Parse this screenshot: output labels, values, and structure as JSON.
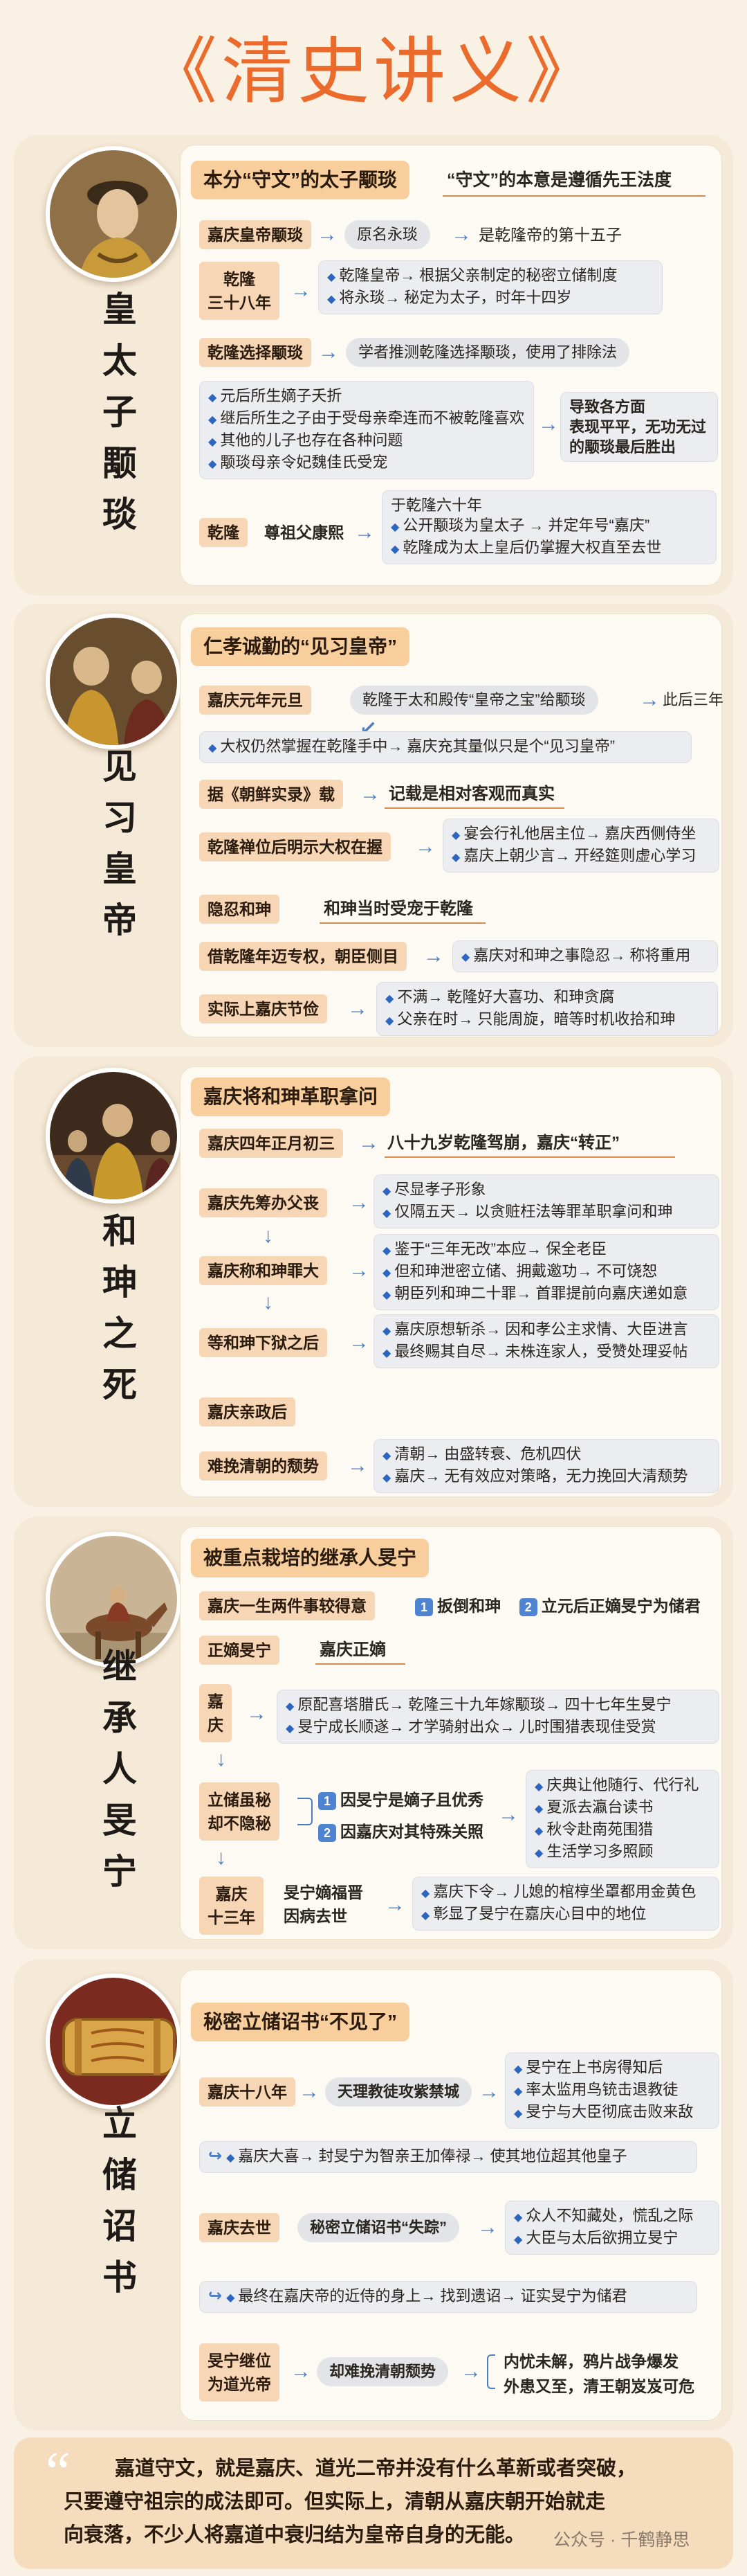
{
  "title": "《清史讲义》",
  "s1": {
    "side_title": "皇太子颙琰",
    "header": "本分“守文”的太子颙琰",
    "header_note": "“守文”的本意是遵循先王法度",
    "birth": {
      "label": "嘉庆皇帝颙琰",
      "orig": "原名永琰",
      "note": "是乾隆帝的第十五子"
    },
    "qianlong38": {
      "label_l1": "乾隆",
      "label_l2": "三十八年",
      "lines": [
        "乾隆皇帝→ 根据父亲制定的秘密立储制度",
        "将永琰→ 秘定为太子，时年十四岁"
      ]
    },
    "choose": {
      "label": "乾隆选择颙琰",
      "note": "学者推测乾隆选择颙琰，使用了排除法",
      "lines": [
        "元后所生嫡子夭折",
        "继后所生之子由于受母亲牵连而不被乾隆喜欢",
        "其他的儿子也存在各种问题",
        "颙琰母亲令妃魏佳氏受宠"
      ],
      "result_l1": "导致各方面",
      "result_l2": "表现平平，无功无过",
      "result_l3": "的颙琰最后胜出"
    },
    "qianlong60": {
      "label": "乾隆",
      "note": "尊祖父康熙",
      "year": "于乾隆六十年",
      "lines": [
        "公开颙琰为皇太子 → 并定年号“嘉庆”",
        "乾隆成为太上皇后仍掌握大权直至去世"
      ]
    }
  },
  "s2": {
    "side_title": "见习皇帝",
    "header": "仁孝诚勤的“见习皇帝”",
    "jiaqing1": {
      "label": "嘉庆元年元旦",
      "pill": "乾隆于太和殿传“皇帝之宝”给颙琰",
      "after": "此后三年",
      "line": "大权仍然掌握在乾隆手中→ 嘉庆充其量似只是个“见习皇帝”"
    },
    "records": {
      "label": "据《朝鲜实录》载",
      "note": "记载是相对客观而真实"
    },
    "power": {
      "label": "乾隆禅位后明示大权在握",
      "lines": [
        "宴会行礼他居主位→ 嘉庆西侧侍坐",
        "嘉庆上朝少言→ 开经筵则虚心学习"
      ]
    },
    "hidden": {
      "label": "隐忍和珅",
      "note": "和珅当时受宠于乾隆"
    },
    "heshen_power": {
      "label": "借乾隆年迈专权，朝臣侧目",
      "line": "嘉庆对和珅之事隐忍→ 称将重用"
    },
    "frugal": {
      "label": "实际上嘉庆节俭",
      "lines": [
        "不满→ 乾隆好大喜功、和珅贪腐",
        "父亲在时→ 只能周旋，暗等时机收拾和珅"
      ]
    }
  },
  "s3": {
    "side_title": "和珅之死",
    "header": "嘉庆将和珅革职拿问",
    "date": {
      "label": "嘉庆四年正月初三",
      "note": "八十九岁乾隆驾崩，嘉庆“转正”"
    },
    "funeral": {
      "label": "嘉庆先筹办父丧",
      "lines": [
        "尽显孝子形象",
        "仅隔五天→ 以贪赃枉法等罪革职拿问和珅"
      ]
    },
    "crimes": {
      "label": "嘉庆称和珅罪大",
      "lines": [
        "鉴于“三年无改”本应→ 保全老臣",
        "但和珅泄密立储、拥戴邀功→ 不可饶恕",
        "朝臣列和珅二十罪→ 首罪提前向嘉庆递如意"
      ]
    },
    "prison": {
      "label": "等和珅下狱之后",
      "lines": [
        "嘉庆原想斩杀→ 因和孝公主求情、大臣进言",
        "最终赐其自尽→ 未株连家人，受赞处理妥帖"
      ]
    },
    "rule": {
      "label": "嘉庆亲政后"
    },
    "decline": {
      "label": "难挽清朝的颓势",
      "lines": [
        "清朝→ 由盛转衰、危机四伏",
        "嘉庆→ 无有效应对策略，无力挽回大清颓势"
      ]
    }
  },
  "s4": {
    "side_title": "继承人旻宁",
    "header": "被重点栽培的继承人旻宁",
    "pride": {
      "label": "嘉庆一生两件事较得意",
      "n1": "1",
      "t1": "扳倒和珅",
      "n2": "2",
      "t2": "立元后正嫡旻宁为储君"
    },
    "legit": {
      "label": "正嫡旻宁",
      "note": "嘉庆正嫡"
    },
    "jq": {
      "label_l1": "嘉",
      "label_l2": "庆",
      "lines": [
        "原配喜塔腊氏→ 乾隆三十九年嫁颙琰→ 四十七年生旻宁",
        "旻宁成长顺遂→ 才学骑射出众→ 儿时围猎表现佳受赏"
      ]
    },
    "secret": {
      "label_l1": "立储虽秘",
      "label_l2": "却不隐秘",
      "n1": "1",
      "r1": "因旻宁是嫡子且优秀",
      "n2": "2",
      "r2": "因嘉庆对其特殊关照",
      "lines": [
        "庆典让他随行、代行礼",
        "夏派去瀛台读书",
        "秋令赴南苑围猎",
        "生活学习多照顾"
      ]
    },
    "jq13": {
      "label_l1": "嘉庆",
      "label_l2": "十三年",
      "note_l1": "旻宁嫡福晋",
      "note_l2": "因病去世",
      "lines": [
        "嘉庆下令→ 儿媳的棺椁坐罩都用金黄色",
        "彰显了旻宁在嘉庆心目中的地位"
      ]
    }
  },
  "s5": {
    "side_title": "立储诏书",
    "header": "秘密立储诏书“不见了”",
    "jq18": {
      "label": "嘉庆十八年",
      "note": "天理教徒攻紫禁城",
      "lines": [
        "旻宁在上书房得知后",
        "率太监用鸟铳击退教徒",
        "旻宁与大臣彻底击败来敌"
      ]
    },
    "reward": {
      "line": "嘉庆大喜→ 封旻宁为智亲王加俸禄→ 使其地位超其他皇子"
    },
    "death": {
      "label": "嘉庆去世",
      "note": "秘密立储诏书“失踪”",
      "lines": [
        "众人不知藏处，慌乱之际",
        "大臣与太后欲拥立旻宁"
      ]
    },
    "found": {
      "line": "最终在嘉庆帝的近侍的身上→ 找到遗诏→ 证实旻宁为储君"
    },
    "daoguang": {
      "label_l1": "旻宁继位",
      "label_l2": "为道光帝",
      "note": "却难挽清朝颓势",
      "r1": "内忧未解，鸦片战争爆发",
      "r2": "外患又至，清王朝岌岌可危"
    }
  },
  "footer": {
    "quote": "“",
    "line1": "嘉道守文，就是嘉庆、道光二帝并没有什么革新或者突破，",
    "line2": "只要遵守祖宗的成法即可。但实际上，清朝从嘉庆朝开始就走",
    "line3": "向衰落，不少人将嘉道中衰归结为皇帝自身的无能。",
    "watermark": "公众号 · 千鹤静思"
  },
  "colors": {
    "accent": "#ea6b2b",
    "label_bg": "#f6d6b4",
    "arrow": "#4a7fc1"
  }
}
